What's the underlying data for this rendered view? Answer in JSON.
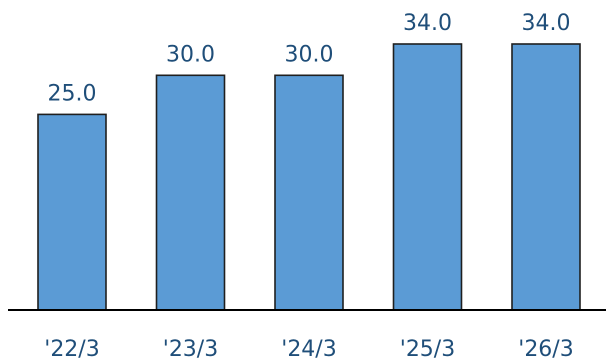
{
  "chart_data": {
    "type": "bar",
    "categories": [
      "'22/3",
      "'23/3",
      "'24/3",
      "'25/3",
      "'26/3"
    ],
    "values": [
      25.0,
      30.0,
      30.0,
      34.0,
      34.0
    ],
    "value_labels": [
      "25.0",
      "30.0",
      "30.0",
      "34.0",
      "34.0"
    ],
    "title": "",
    "xlabel": "",
    "ylabel": "",
    "ylim": [
      0,
      34
    ],
    "grid": false,
    "legend": "none",
    "bar_color": "#5b9bd5"
  }
}
